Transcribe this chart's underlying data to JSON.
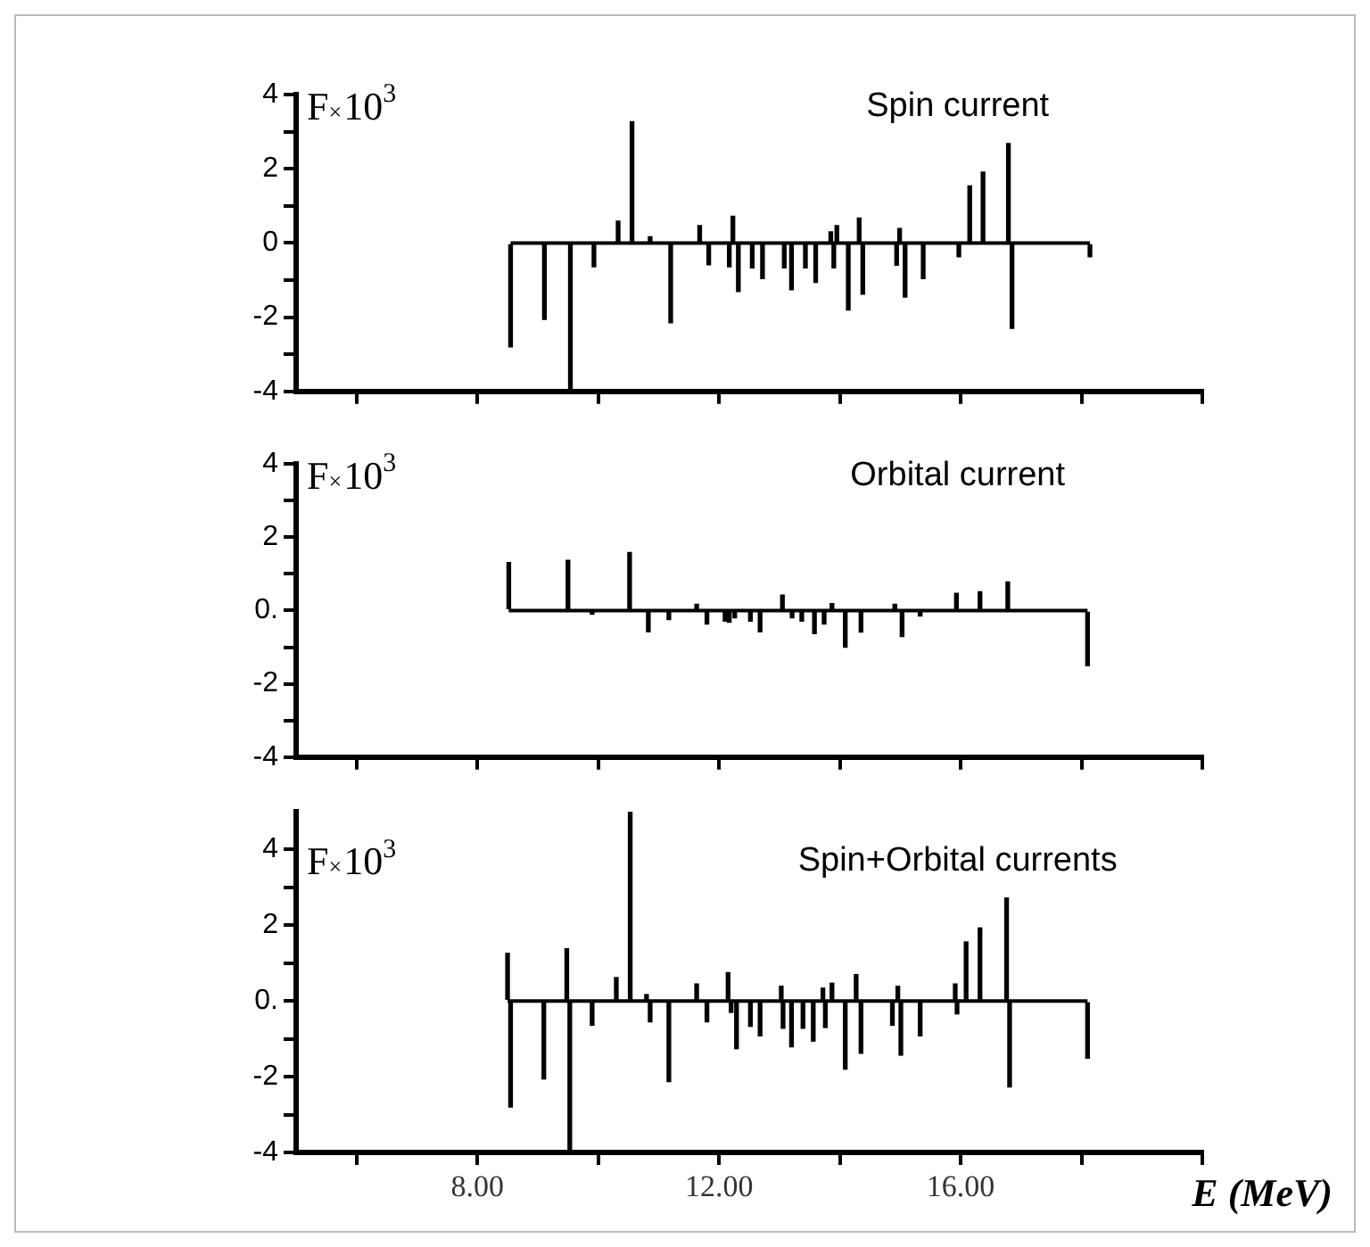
{
  "chart_data": [
    {
      "type": "bar",
      "title": "Spin current",
      "ylabel": "F×10$^{3}$",
      "color": "#000000",
      "tick_labels": "y",
      "ref_lines": [
        {
          "axis": "y",
          "value": 0
        }
      ],
      "x": [
        8.55,
        9.11,
        9.54,
        9.93,
        10.33,
        10.56,
        10.86,
        11.2,
        11.68,
        11.83,
        12.17,
        12.23,
        12.32,
        12.55,
        12.72,
        13.08,
        13.2,
        13.43,
        13.6,
        13.85,
        13.9,
        13.95,
        14.14,
        14.32,
        14.38,
        14.94,
        14.99,
        15.08,
        15.38,
        15.97,
        16.15,
        16.37,
        16.79,
        16.85,
        18.14
      ],
      "values": [
        -2.8,
        -2.06,
        -4,
        -0.64,
        0.59,
        3.27,
        0.17,
        -2.15,
        0.47,
        -0.59,
        -0.64,
        0.72,
        -1.31,
        -0.67,
        -0.96,
        -0.67,
        -1.26,
        -0.67,
        -1.06,
        0.3,
        -0.67,
        0.47,
        -1.81,
        0.67,
        -1.38,
        -0.6,
        0.39,
        -1.46,
        -0.96,
        -0.37,
        1.54,
        1.91,
        2.68,
        -2.3,
        -0.37
      ],
      "xlim": [
        5,
        20
      ],
      "xticks": [
        6,
        8,
        10,
        12,
        14,
        16,
        18,
        20
      ],
      "ylim": [
        -4,
        4
      ],
      "yticks": [
        -4,
        {
          "value": -3,
          "label": null
        },
        -2,
        {
          "value": -1,
          "label": null
        },
        0,
        {
          "value": 1,
          "label": null
        },
        2,
        {
          "value": 3,
          "label": null
        },
        4
      ]
    },
    {
      "type": "bar",
      "title": "Orbital current",
      "ylabel": "F×10$^{3}$",
      "color": "#000000",
      "tick_labels": "y",
      "ref_lines": [
        {
          "axis": "y",
          "value": 0
        }
      ],
      "x": [
        8.52,
        9.5,
        9.9,
        10.52,
        10.83,
        11.17,
        11.63,
        11.8,
        12.1,
        12.17,
        12.26,
        12.52,
        12.68,
        13.05,
        13.21,
        13.37,
        13.58,
        13.74,
        13.87,
        14.09,
        14.35,
        14.91,
        15.03,
        15.33,
        15.93,
        16.32,
        16.78,
        18.1
      ],
      "values": [
        1.31,
        1.37,
        -0.1,
        1.58,
        -0.58,
        -0.25,
        0.17,
        -0.37,
        -0.29,
        -0.32,
        -0.2,
        -0.29,
        -0.58,
        0.42,
        -0.2,
        -0.29,
        -0.63,
        -0.37,
        0.19,
        -1.0,
        -0.59,
        0.17,
        -0.71,
        -0.15,
        0.47,
        0.51,
        0.78,
        -1.51
      ],
      "xlim": [
        5,
        20
      ],
      "xticks": [
        6,
        8,
        10,
        12,
        14,
        16,
        18,
        20
      ],
      "ylim": [
        -4,
        4
      ],
      "yticks": [
        -4,
        {
          "value": -3,
          "label": null
        },
        -2,
        {
          "value": -1,
          "label": null
        },
        {
          "value": 0,
          "label": "0."
        },
        {
          "value": 1,
          "label": null
        },
        2,
        {
          "value": 3,
          "label": null
        },
        4
      ]
    },
    {
      "type": "bar",
      "title": "Spin+Orbital currents",
      "ylabel": "F×10$^{3}$",
      "xlabel": "E (MeV)",
      "color": "#000000",
      "ref_lines": [
        {
          "axis": "y",
          "value": 0
        }
      ],
      "x": [
        8.5,
        8.55,
        9.1,
        9.48,
        9.53,
        9.9,
        10.3,
        10.53,
        10.8,
        10.86,
        11.17,
        11.63,
        11.8,
        12.15,
        12.2,
        12.29,
        12.52,
        12.68,
        13.03,
        13.06,
        13.2,
        13.39,
        13.56,
        13.72,
        13.76,
        13.87,
        14.09,
        14.27,
        14.35,
        14.87,
        14.96,
        15.01,
        15.33,
        15.91,
        15.94,
        16.09,
        16.32,
        16.76,
        16.81,
        18.1
      ],
      "values": [
        1.26,
        -2.8,
        -2.06,
        1.38,
        -4,
        -0.64,
        0.62,
        5.0,
        0.17,
        -0.55,
        -2.13,
        0.45,
        -0.55,
        0.75,
        -0.3,
        -1.26,
        -0.67,
        -0.92,
        0.39,
        -0.72,
        -1.21,
        -0.72,
        -1.06,
        0.34,
        -0.7,
        0.47,
        -1.8,
        0.7,
        -1.38,
        -0.64,
        0.39,
        -1.43,
        -0.92,
        0.45,
        -0.34,
        1.56,
        1.93,
        2.72,
        -2.27,
        -1.51
      ],
      "xlim": [
        5,
        20
      ],
      "xticks": [
        {
          "value": 6,
          "label": null
        },
        {
          "value": 8,
          "label": "8.00"
        },
        {
          "value": 10,
          "label": null
        },
        {
          "value": 12,
          "label": "12.00"
        },
        {
          "value": 14,
          "label": null
        },
        {
          "value": 16,
          "label": "16.00"
        },
        {
          "value": 18,
          "label": null
        },
        {
          "value": 20,
          "label": null
        }
      ],
      "ylim": [
        -4,
        5
      ],
      "yticks": [
        -4,
        {
          "value": -3,
          "label": null
        },
        -2,
        {
          "value": -1,
          "label": null
        },
        {
          "value": 0,
          "label": "0."
        },
        {
          "value": 1,
          "label": null
        },
        2,
        {
          "value": 3,
          "label": null
        },
        4
      ]
    }
  ]
}
